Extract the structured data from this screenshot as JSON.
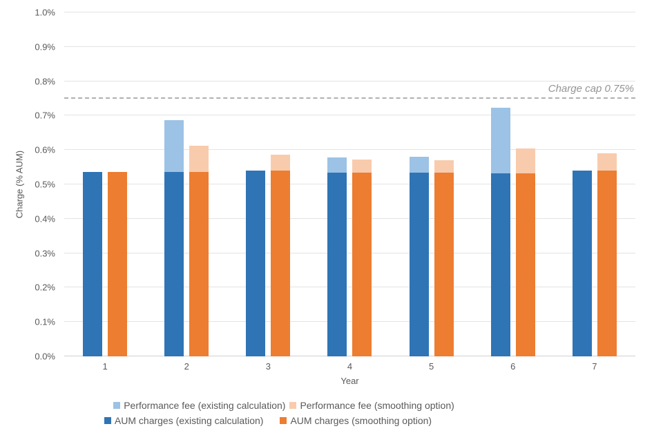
{
  "chart_data": {
    "type": "bar",
    "subtype": "grouped-stacked-columns",
    "title": "",
    "xlabel": "Year",
    "ylabel": "Charge (% AUM)",
    "units_note": "values are percent of AUM, e.g. 0.537 = 0.537%",
    "categories": [
      "1",
      "2",
      "3",
      "4",
      "5",
      "6",
      "7"
    ],
    "y_axis": {
      "min": 0,
      "max": 1.0,
      "step": 0.1,
      "tick_labels": [
        "0.0%",
        "0.1%",
        "0.2%",
        "0.3%",
        "0.4%",
        "0.5%",
        "0.6%",
        "0.7%",
        "0.8%",
        "0.9%",
        "1.0%"
      ]
    },
    "grid": true,
    "legend_position": "bottom",
    "series": [
      {
        "id": "aum_existing",
        "name": "AUM charges (existing calculation)",
        "color": "#2F74B5",
        "values": [
          0.537,
          0.536,
          0.541,
          0.534,
          0.534,
          0.532,
          0.541
        ]
      },
      {
        "id": "perf_existing",
        "name": "Performance fee (existing calculation)",
        "color": "#9CC2E5",
        "values": [
          0,
          0.151,
          0,
          0.044,
          0.047,
          0.19,
          0
        ]
      },
      {
        "id": "aum_smoothing",
        "name": "AUM charges (smoothing option)",
        "color": "#ED7D31",
        "values": [
          0.537,
          0.536,
          0.541,
          0.534,
          0.534,
          0.532,
          0.541
        ]
      },
      {
        "id": "perf_smoothing",
        "name": "Performance fee (smoothing option)",
        "color": "#F8CBAD",
        "values": [
          0,
          0.076,
          0.045,
          0.039,
          0.037,
          0.072,
          0.049
        ]
      }
    ],
    "stacks": [
      [
        "aum_existing",
        "perf_existing"
      ],
      [
        "aum_smoothing",
        "perf_smoothing"
      ]
    ],
    "stack_totals": {
      "existing": [
        0.537,
        0.687,
        0.541,
        0.578,
        0.581,
        0.722,
        0.541
      ],
      "smoothing": [
        0.537,
        0.612,
        0.586,
        0.573,
        0.571,
        0.604,
        0.59
      ]
    },
    "annotation": {
      "label": "Charge cap 0.75%",
      "value": 0.75
    }
  },
  "legend": {
    "rows": [
      [
        {
          "label": "Performance fee (existing calculation)",
          "color": "#9CC2E5"
        },
        {
          "label": "Performance fee (smoothing option)",
          "color": "#F8CBAD"
        }
      ],
      [
        {
          "label": "AUM charges (existing calculation)",
          "color": "#2F74B5"
        },
        {
          "label": "AUM charges (smoothing option)",
          "color": "#ED7D31"
        }
      ]
    ]
  },
  "colors": {
    "aum_existing": "#2F74B5",
    "perf_existing": "#9CC2E5",
    "aum_smoothing": "#ED7D31",
    "perf_smoothing": "#F8CBAD",
    "gridline": "#E3E3E3",
    "axis_line": "#CFCFCF",
    "dashed_cap_line": "#B0B0B0",
    "text": "#595959",
    "cap_label_text": "#949494",
    "background": "#FFFFFF"
  }
}
